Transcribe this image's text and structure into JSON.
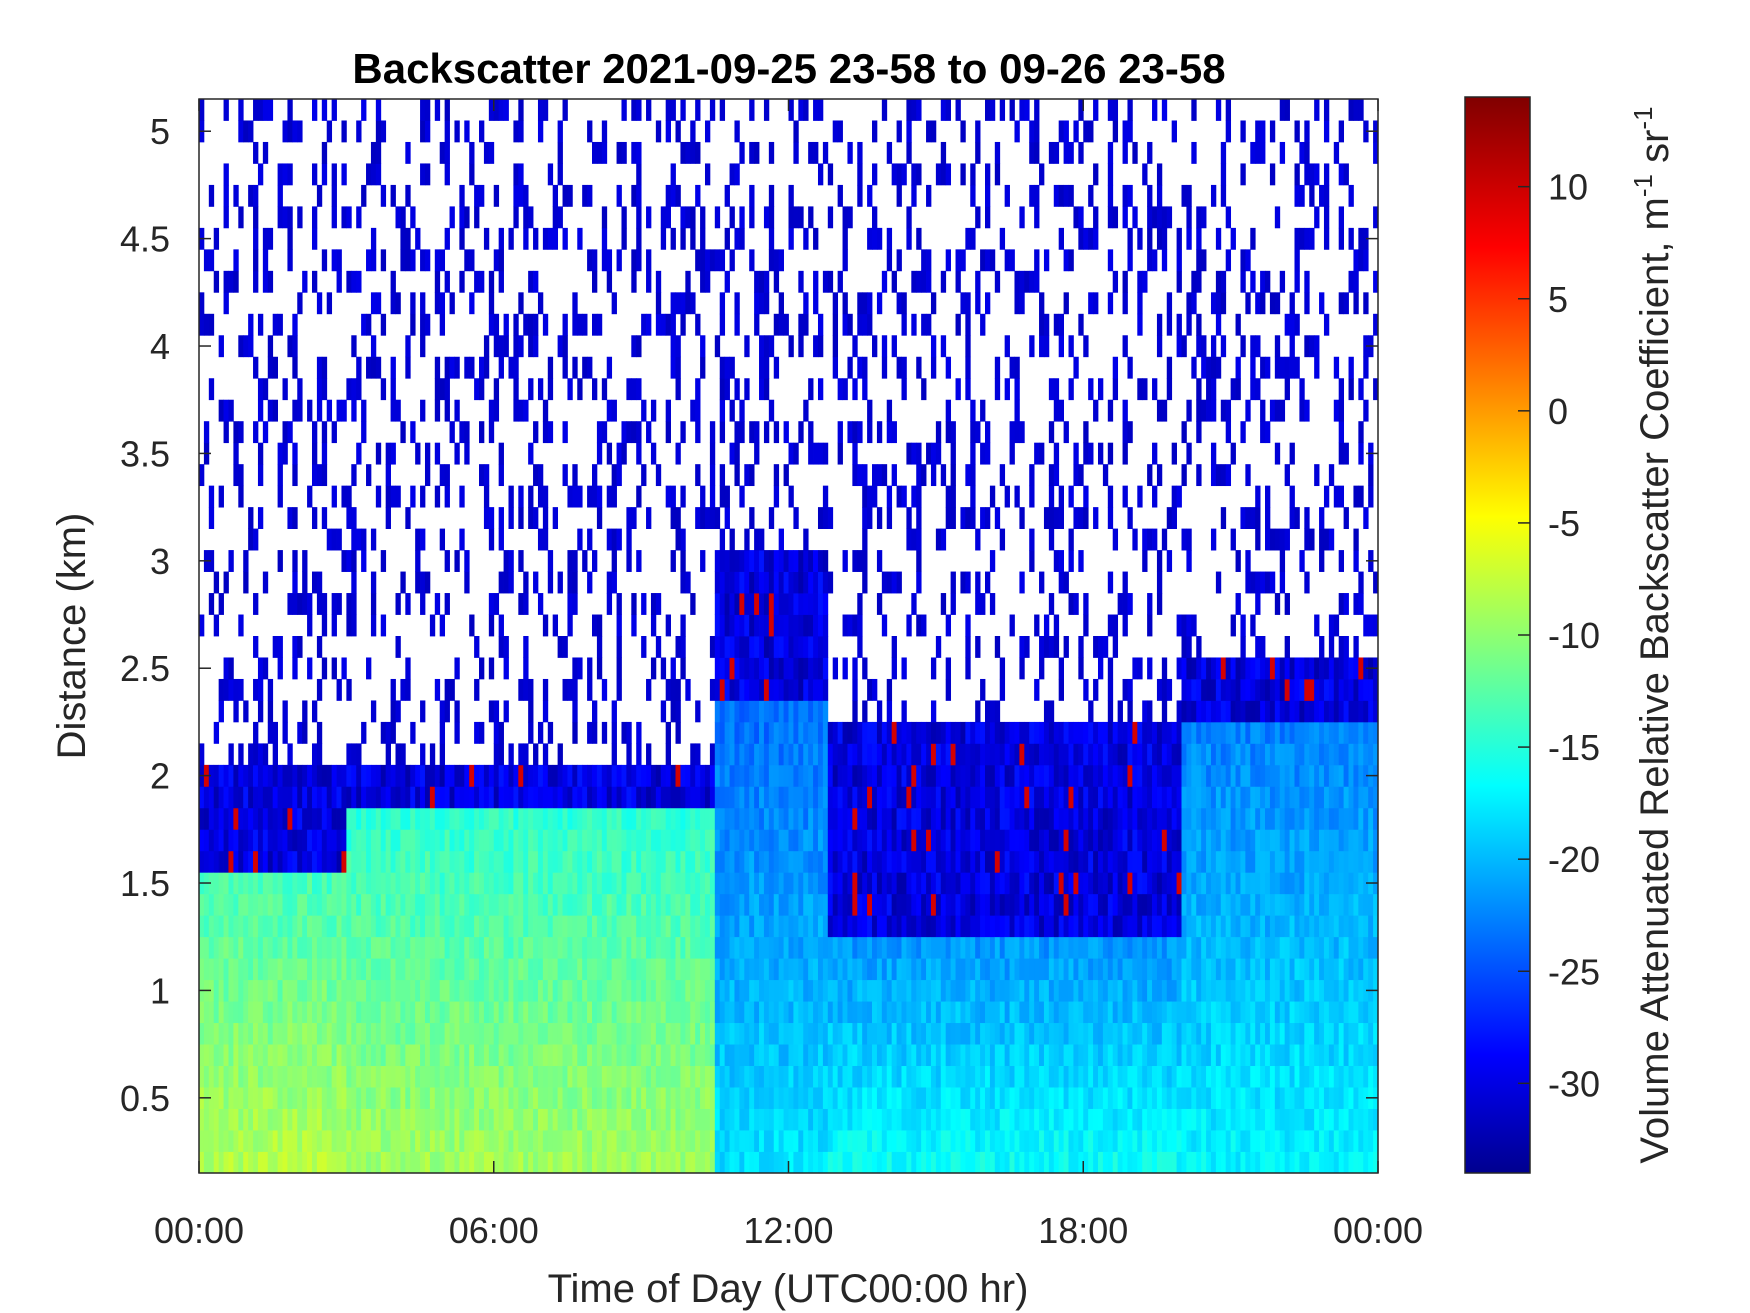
{
  "chart_data": {
    "type": "heatmap",
    "title": "Backscatter 2021-09-25 23-58 to 09-26 23-58",
    "xlabel": "Time of Day (UTC00:00 hr)",
    "ylabel": "Distance (km)",
    "colorbar_label": "Volume Attenuated Relative Backscatter Coefficient, m",
    "colorbar_label_parts": [
      "Volume Attenuated Relative Backscatter Coefficient, m",
      "-1",
      " sr",
      "-1"
    ],
    "x_ticks": [
      "00:00",
      "06:00",
      "12:00",
      "18:00",
      "00:00"
    ],
    "x_range_hours": [
      0,
      24
    ],
    "y_ticks": [
      "0.5",
      "1",
      "1.5",
      "2",
      "2.5",
      "3",
      "3.5",
      "4",
      "4.5",
      "5"
    ],
    "y_range_km": [
      0.15,
      5.15
    ],
    "colorbar_ticks": [
      "10",
      "5",
      "0",
      "-5",
      "-10",
      "-15",
      "-20",
      "-25",
      "-30"
    ],
    "colorbar_range": [
      -34,
      14
    ],
    "colormap": "jet",
    "colors": {
      "jet_stops": [
        "#00008f",
        "#0000ff",
        "#00ffff",
        "#ffff00",
        "#ff0000",
        "#800000"
      ],
      "frame": "#262626",
      "background": "#ffffff"
    },
    "profile_description_hours_km": [
      {
        "hours": [
          0,
          3
        ],
        "aerosol_top_km": 1.55,
        "signal_top_km": 2.0,
        "surface_value": -7
      },
      {
        "hours": [
          3,
          10.5
        ],
        "aerosol_top_km": 1.8,
        "signal_top_km": 2.0,
        "surface_value": -8
      },
      {
        "hours": [
          10.5,
          12.8
        ],
        "aerosol_top_km": 2.3,
        "signal_top_km": 3.0,
        "surface_value": -17
      },
      {
        "hours": [
          12.8,
          20
        ],
        "aerosol_top_km": 1.2,
        "signal_top_km": 2.2,
        "surface_value": -15
      },
      {
        "hours": [
          20,
          24
        ],
        "aerosol_top_km": 2.2,
        "signal_top_km": 2.5,
        "surface_value": -16
      }
    ]
  }
}
